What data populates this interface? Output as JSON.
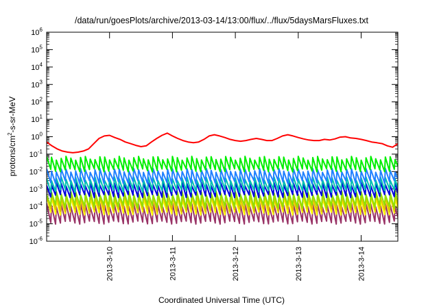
{
  "chart_data": {
    "type": "line",
    "title": "/data/run/goesPlots/archive/2013-03-14/13:00/flux/../flux/5daysMarsFluxes.txt",
    "xlabel": "Coordinated Universal Time (UTC)",
    "ylabel_main": "protons/cm",
    "ylabel_sup": "2",
    "ylabel_rest": "-s-sr-MeV",
    "y_scale": "log",
    "ylim": [
      1e-06,
      1000000.0
    ],
    "y_ticks": [
      {
        "base": "10",
        "exp": "6",
        "value": 1000000.0
      },
      {
        "base": "10",
        "exp": "5",
        "value": 100000.0
      },
      {
        "base": "10",
        "exp": "4",
        "value": 10000.0
      },
      {
        "base": "10",
        "exp": "3",
        "value": 1000.0
      },
      {
        "base": "10",
        "exp": "2",
        "value": 100.0
      },
      {
        "base": "10",
        "exp": "1",
        "value": 10.0
      },
      {
        "base": "10",
        "exp": "0",
        "value": 1.0
      },
      {
        "base": "10",
        "exp": "-1",
        "value": 0.1
      },
      {
        "base": "10",
        "exp": "-2",
        "value": 0.01
      },
      {
        "base": "10",
        "exp": "-3",
        "value": 0.001
      },
      {
        "base": "10",
        "exp": "-4",
        "value": 0.0001
      },
      {
        "base": "10",
        "exp": "-5",
        "value": 1e-05
      },
      {
        "base": "10",
        "exp": "-6",
        "value": 1e-06
      }
    ],
    "xlim": [
      "2013-03-09 00:00",
      "2013-03-14 14:00"
    ],
    "x_ticks": [
      "2013-3-10",
      "2013-3-11",
      "2013-3-12",
      "2013-3-13",
      "2013-3-14"
    ],
    "grid": false,
    "legend": "none",
    "series": [
      {
        "color": "#ff0000",
        "points": [
          [
            "2013-03-09 00:00",
            0.5
          ],
          [
            "2013-03-09 02:00",
            0.3
          ],
          [
            "2013-03-09 04:00",
            0.2
          ],
          [
            "2013-03-09 06:00",
            0.15
          ],
          [
            "2013-03-09 08:00",
            0.13
          ],
          [
            "2013-03-09 10:00",
            0.12
          ],
          [
            "2013-03-09 12:00",
            0.13
          ],
          [
            "2013-03-09 14:00",
            0.15
          ],
          [
            "2013-03-09 16:00",
            0.2
          ],
          [
            "2013-03-09 18:00",
            0.4
          ],
          [
            "2013-03-09 20:00",
            0.8
          ],
          [
            "2013-03-09 22:00",
            1.1
          ],
          [
            "2013-03-10 00:00",
            1.2
          ],
          [
            "2013-03-10 02:00",
            0.9
          ],
          [
            "2013-03-10 04:00",
            0.7
          ],
          [
            "2013-03-10 06:00",
            0.5
          ],
          [
            "2013-03-10 08:00",
            0.4
          ],
          [
            "2013-03-10 10:00",
            0.32
          ],
          [
            "2013-03-10 12:00",
            0.27
          ],
          [
            "2013-03-10 14:00",
            0.3
          ],
          [
            "2013-03-10 16:00",
            0.5
          ],
          [
            "2013-03-10 18:00",
            0.8
          ],
          [
            "2013-03-10 20:00",
            1.2
          ],
          [
            "2013-03-10 22:00",
            1.6
          ],
          [
            "2013-03-11 00:00",
            1.1
          ],
          [
            "2013-03-11 02:00",
            0.8
          ],
          [
            "2013-03-11 04:00",
            0.6
          ],
          [
            "2013-03-11 06:00",
            0.5
          ],
          [
            "2013-03-11 08:00",
            0.45
          ],
          [
            "2013-03-11 10:00",
            0.5
          ],
          [
            "2013-03-11 12:00",
            0.7
          ],
          [
            "2013-03-11 14:00",
            1.1
          ],
          [
            "2013-03-11 16:00",
            1.3
          ],
          [
            "2013-03-11 18:00",
            1.1
          ],
          [
            "2013-03-11 20:00",
            0.9
          ],
          [
            "2013-03-11 22:00",
            0.7
          ],
          [
            "2013-03-12 00:00",
            0.6
          ],
          [
            "2013-03-12 02:00",
            0.55
          ],
          [
            "2013-03-12 04:00",
            0.6
          ],
          [
            "2013-03-12 06:00",
            0.7
          ],
          [
            "2013-03-12 08:00",
            0.8
          ],
          [
            "2013-03-12 10:00",
            0.7
          ],
          [
            "2013-03-12 12:00",
            0.6
          ],
          [
            "2013-03-12 14:00",
            0.6
          ],
          [
            "2013-03-12 16:00",
            0.8
          ],
          [
            "2013-03-12 18:00",
            1.1
          ],
          [
            "2013-03-12 20:00",
            1.3
          ],
          [
            "2013-03-12 22:00",
            1.1
          ],
          [
            "2013-03-13 00:00",
            0.9
          ],
          [
            "2013-03-13 02:00",
            0.75
          ],
          [
            "2013-03-13 04:00",
            0.65
          ],
          [
            "2013-03-13 06:00",
            0.6
          ],
          [
            "2013-03-13 08:00",
            0.6
          ],
          [
            "2013-03-13 10:00",
            0.7
          ],
          [
            "2013-03-13 12:00",
            0.65
          ],
          [
            "2013-03-13 14:00",
            0.75
          ],
          [
            "2013-03-13 16:00",
            0.95
          ],
          [
            "2013-03-13 18:00",
            1.0
          ],
          [
            "2013-03-13 20:00",
            0.85
          ],
          [
            "2013-03-13 22:00",
            0.8
          ],
          [
            "2013-03-14 00:00",
            0.7
          ],
          [
            "2013-03-14 02:00",
            0.6
          ],
          [
            "2013-03-14 04:00",
            0.5
          ],
          [
            "2013-03-14 06:00",
            0.45
          ],
          [
            "2013-03-14 08:00",
            0.4
          ],
          [
            "2013-03-14 10:00",
            0.3
          ],
          [
            "2013-03-14 12:00",
            0.25
          ],
          [
            "2013-03-14 14:00",
            0.4
          ]
        ]
      },
      {
        "color": "#00ee00",
        "sawtooth": {
          "low": 0.012,
          "high": 0.06,
          "teeth_per_day": 13
        }
      },
      {
        "color": "#2080ff",
        "sawtooth": {
          "low": 0.0025,
          "high": 0.012,
          "teeth_per_day": 13
        }
      },
      {
        "color": "#00c0b0",
        "sawtooth": {
          "low": 0.0008,
          "high": 0.004,
          "teeth_per_day": 13
        }
      },
      {
        "color": "#0000dd",
        "sawtooth": {
          "low": 0.0004,
          "high": 0.002,
          "teeth_per_day": 13
        }
      },
      {
        "color": "#90e000",
        "sawtooth": {
          "low": 0.0001,
          "high": 0.0006,
          "teeth_per_day": 13
        }
      },
      {
        "color": "#e0c000",
        "sawtooth": {
          "low": 6e-05,
          "high": 0.0004,
          "teeth_per_day": 13
        }
      },
      {
        "color": "#ffff00",
        "sawtooth": {
          "low": 4e-05,
          "high": 0.0003,
          "teeth_per_day": 13
        }
      },
      {
        "color": "#993366",
        "sawtooth": {
          "low": 1.2e-05,
          "high": 0.00012,
          "teeth_per_day": 13
        }
      }
    ]
  }
}
